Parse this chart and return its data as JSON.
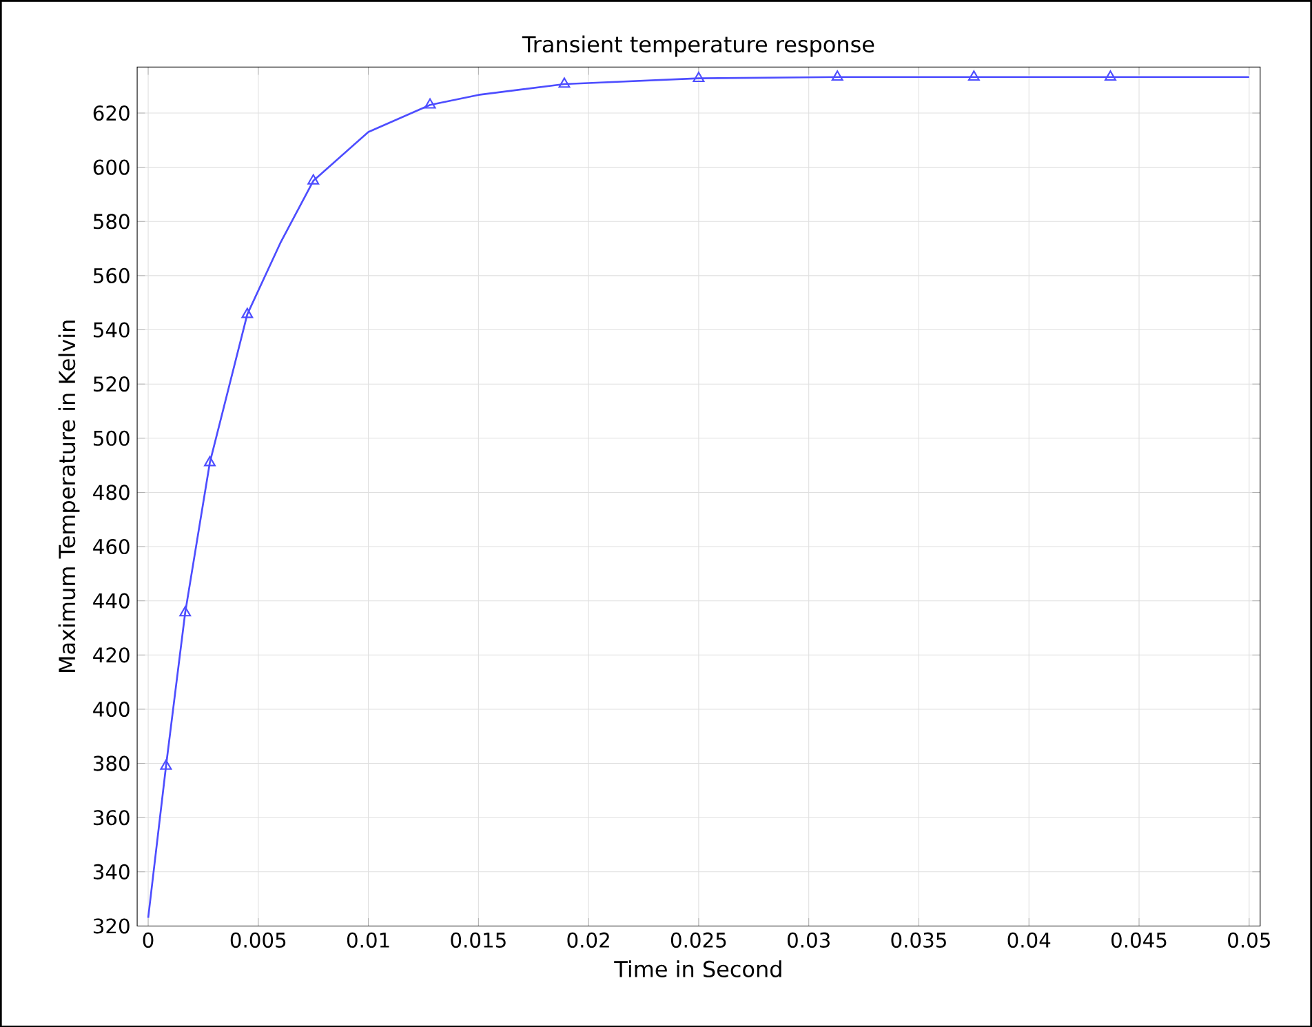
{
  "chart_data": {
    "type": "line",
    "title": "Transient temperature response",
    "xlabel": "Time in Second",
    "ylabel": "Maximum Temperature in Kelvin",
    "series": [
      {
        "color": "#4d4dff",
        "marker": "none",
        "x": [
          0,
          0.00081,
          0.00168,
          0.0028,
          0.0045,
          0.006,
          0.0075,
          0.01,
          0.0128,
          0.015,
          0.0189,
          0.025,
          0.0313,
          0.0375,
          0.0437,
          0.05
        ],
        "values": [
          323,
          379,
          435.6,
          491,
          545.7,
          572,
          595,
          613,
          623,
          626.7,
          630.7,
          632.8,
          633.3,
          633.3,
          633.3,
          633.3
        ]
      },
      {
        "type": "scatter",
        "color": "#4d4dff",
        "marker": "triangle",
        "x": [
          0.00081,
          0.00168,
          0.0028,
          0.0045,
          0.0075,
          0.0128,
          0.0189,
          0.025,
          0.0313,
          0.0375,
          0.0437
        ],
        "values": [
          379,
          435.6,
          491,
          545.7,
          595,
          623,
          630.7,
          632.8,
          633.3,
          633.3,
          633.3
        ]
      }
    ],
    "xlim": [
      -0.0005,
      0.0505
    ],
    "ylim": [
      320,
      637
    ],
    "xticks": [
      0,
      0.005,
      0.01,
      0.015,
      0.02,
      0.025,
      0.03,
      0.035,
      0.04,
      0.045,
      0.05
    ],
    "yticks": [
      320,
      340,
      360,
      380,
      400,
      420,
      440,
      460,
      480,
      500,
      520,
      540,
      560,
      580,
      600,
      620
    ],
    "grid": true,
    "line_style": "solid"
  }
}
